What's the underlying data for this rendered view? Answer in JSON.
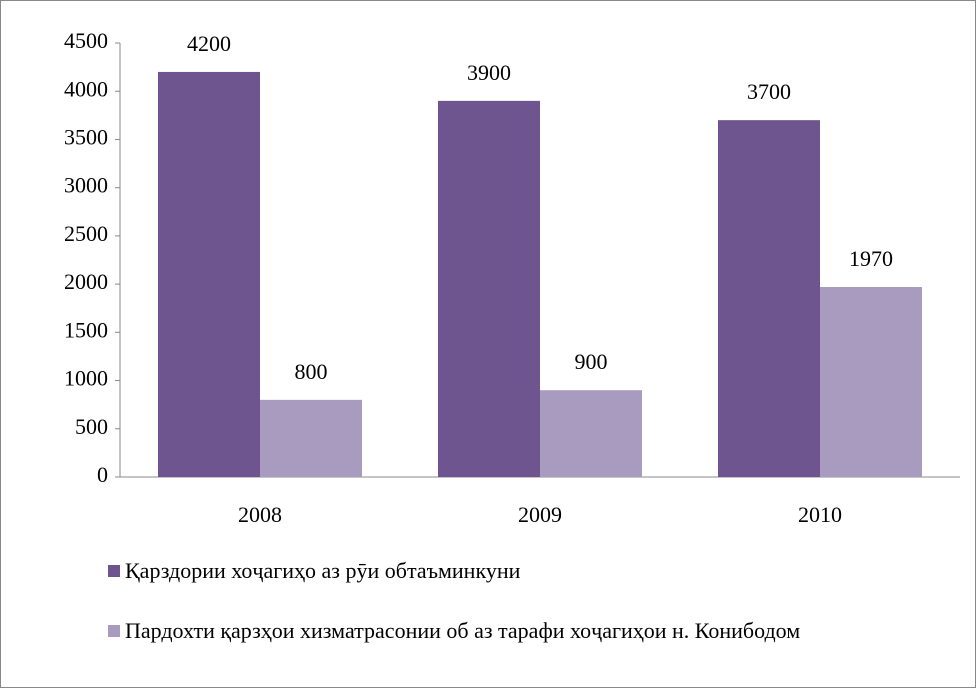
{
  "chart_data": {
    "type": "bar",
    "categories": [
      "2008",
      "2009",
      "2010"
    ],
    "series": [
      {
        "name": "Қарздории хоҷагиҳо аз рӯи обтаъминкуни",
        "color": "#6f5590",
        "values": [
          4200,
          3900,
          3700
        ]
      },
      {
        "name": "Пардохти қарзҳои хизматрасонии об аз тарафи хоҷагиҳои н. Конибодом",
        "color": "#a99bc0",
        "values": [
          800,
          900,
          1970
        ]
      }
    ],
    "ylim": [
      0,
      4500
    ],
    "yticks": [
      0,
      500,
      1000,
      1500,
      2000,
      2500,
      3000,
      3500,
      4000,
      4500
    ],
    "grid": false,
    "legend": "bottom"
  }
}
